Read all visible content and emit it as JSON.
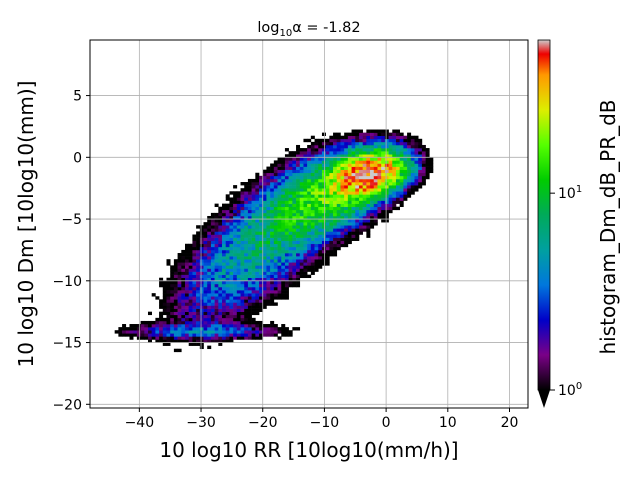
{
  "chart_data": {
    "type": "heatmap",
    "title_main": "log",
    "title_sub": "10",
    "title_rest": "α = -1.82",
    "xlabel": "10 log10 RR [10log10(mm/h)]",
    "ylabel": "10 log10 Dm [10log10(mm)]",
    "xlim": [
      -48,
      23
    ],
    "ylim": [
      -20.3,
      9.5
    ],
    "xticks": [
      -40,
      -30,
      -20,
      -10,
      0,
      10,
      20
    ],
    "yticks": [
      -20,
      -15,
      -10,
      -5,
      0,
      5
    ],
    "grid": true,
    "colorbar": {
      "label": "histogram_Dm_dB_PR_dB",
      "scale": "log",
      "vmin": 1,
      "vmax": 60,
      "ticks": [
        {
          "value": 1,
          "base": "10",
          "exp": "0"
        },
        {
          "value": 10,
          "base": "10",
          "exp": "1"
        }
      ],
      "extend": "min",
      "colormap": "nipy_spectral"
    },
    "density_cores": [
      {
        "x": -3,
        "y": -1.5,
        "sx": 3.2,
        "sy": 1.0,
        "rho": 0.3,
        "peak": 55
      },
      {
        "x": -9,
        "y": -3,
        "sx": 5.5,
        "sy": 2.0,
        "rho": 0.5,
        "peak": 14
      },
      {
        "x": -18,
        "y": -6,
        "sx": 6.5,
        "sy": 3.0,
        "rho": 0.6,
        "peak": 6
      },
      {
        "x": -27,
        "y": -10,
        "sx": 6.0,
        "sy": 3.0,
        "rho": 0.5,
        "peak": 2.2
      },
      {
        "x": -30,
        "y": -14.2,
        "sx": 8.0,
        "sy": 0.4,
        "rho": 0.0,
        "peak": 3
      }
    ]
  }
}
